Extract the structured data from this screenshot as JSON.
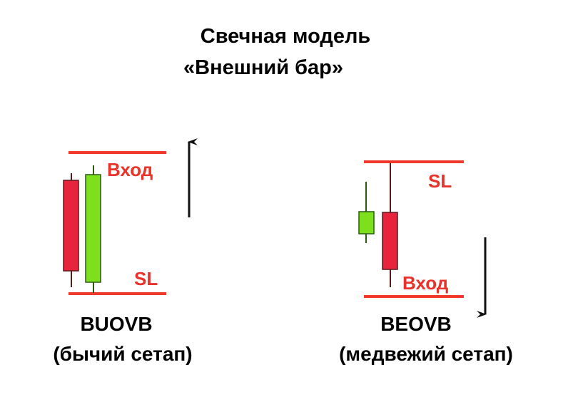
{
  "title": {
    "line1": "Свечная модель",
    "line2": "«Внешний бар»"
  },
  "colors": {
    "level": "#f0392b",
    "label": "#e8322a",
    "bear": "#e8243c",
    "bull": "#7ee01c",
    "arrow": "#111111"
  },
  "left": {
    "entry_label": "Вход",
    "sl_label": "SL",
    "name": "BUOVB",
    "subtitle": "(бычий сетап)",
    "arrow_icon": "arrow-up"
  },
  "right": {
    "entry_label": "Вход",
    "sl_label": "SL",
    "name": "BEOVB",
    "subtitle": "(медвежий сетап)",
    "arrow_icon": "arrow-down"
  }
}
